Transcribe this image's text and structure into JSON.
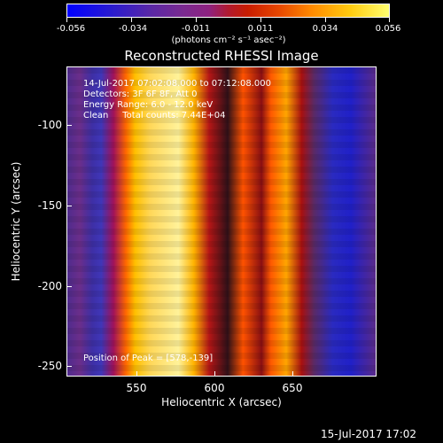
{
  "colorbar": {
    "ticks": [
      "-0.056",
      "-0.034",
      "-0.011",
      "0.011",
      "0.034",
      "0.056"
    ],
    "units": "(photons cm⁻² s⁻¹ asec⁻²)"
  },
  "title": "Reconstructed RHESSI Image",
  "info": {
    "line1": "14-Jul-2017 07:02:08.000 to 07:12:08.000",
    "line2": "Detectors: 3F 6F 8F, Att 0",
    "line3": "Energy Range: 6.0 - 12.0 keV",
    "line4": "Clean     Total counts: 7.44E+04",
    "peak": "Position of Peak = [578,-139]"
  },
  "axes": {
    "xlabel": "Heliocentric X (arcsec)",
    "ylabel": "Heliocentric Y (arcsec)",
    "xticks": [
      "550",
      "600",
      "650"
    ],
    "yticks": [
      "-100",
      "-150",
      "-200",
      "-250"
    ]
  },
  "footer_date": "15-Jul-2017 17:02"
}
